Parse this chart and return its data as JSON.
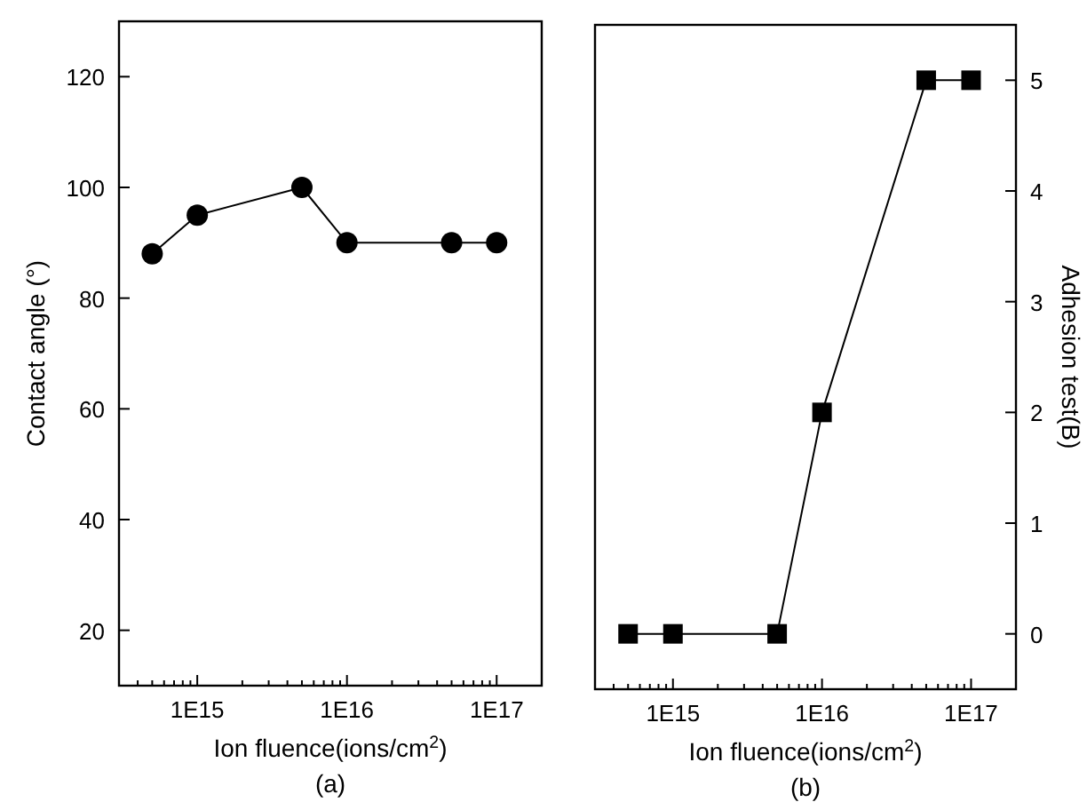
{
  "chart_data": [
    {
      "type": "line",
      "xlabel": "Ion fluence(ions/cm$^{2}$)",
      "ylabel": "Contact angle (°)",
      "annotations": [
        "(a)"
      ],
      "log": "x",
      "xlim": [
        300000000000000.0,
        2e+17
      ],
      "xticks": [
        {
          "value": 300000000000000.0,
          "label": null
        },
        {
          "value": 400000000000000.0,
          "label": null
        },
        {
          "value": 500000000000000.0,
          "label": null
        },
        {
          "value": 600000000000000.0,
          "label": null
        },
        {
          "value": 700000000000000.0,
          "label": null
        },
        {
          "value": 800000000000000.0,
          "label": null
        },
        {
          "value": 900000000000000.0,
          "label": null
        },
        {
          "value": 1000000000000000.0,
          "label": "1E15"
        },
        {
          "value": 2000000000000000.0,
          "label": null
        },
        {
          "value": 3000000000000000.0,
          "label": null
        },
        {
          "value": 4000000000000000.0,
          "label": null
        },
        {
          "value": 5000000000000000.0,
          "label": null
        },
        {
          "value": 6000000000000000.0,
          "label": null
        },
        {
          "value": 7000000000000000.0,
          "label": null
        },
        {
          "value": 8000000000000000.0,
          "label": null
        },
        {
          "value": 9000000000000000.0,
          "label": null
        },
        {
          "value": 1e+16,
          "label": "1E16"
        },
        {
          "value": 2e+16,
          "label": null
        },
        {
          "value": 3e+16,
          "label": null
        },
        {
          "value": 4e+16,
          "label": null
        },
        {
          "value": 5e+16,
          "label": null
        },
        {
          "value": 6e+16,
          "label": null
        },
        {
          "value": 7e+16,
          "label": null
        },
        {
          "value": 8e+16,
          "label": null
        },
        {
          "value": 9e+16,
          "label": null
        },
        {
          "value": 1e+17,
          "label": "1E17"
        },
        {
          "value": 2e+17,
          "label": null
        }
      ],
      "ylim": [
        10,
        130
      ],
      "yticks": [
        20,
        40,
        60,
        80,
        100,
        120
      ],
      "marker": "circle",
      "line_style": "solid",
      "x": [
        500000000000000.0,
        1000000000000000.0,
        5000000000000000.0,
        1e+16,
        5e+16,
        1e+17
      ],
      "series": [
        {
          "color": "#000000",
          "values": [
            88,
            95,
            100,
            90,
            90,
            90
          ]
        }
      ]
    },
    {
      "type": "line",
      "xlabel": "Ion fluence(ions/cm$^{2}$)",
      "y2label": "Adhesion test(B)",
      "annotations": [
        "(b)"
      ],
      "log": "x",
      "xlim": [
        300000000000000.0,
        2e+17
      ],
      "xticks": [
        {
          "value": 300000000000000.0,
          "label": null
        },
        {
          "value": 400000000000000.0,
          "label": null
        },
        {
          "value": 500000000000000.0,
          "label": null
        },
        {
          "value": 600000000000000.0,
          "label": null
        },
        {
          "value": 700000000000000.0,
          "label": null
        },
        {
          "value": 800000000000000.0,
          "label": null
        },
        {
          "value": 900000000000000.0,
          "label": null
        },
        {
          "value": 1000000000000000.0,
          "label": "1E15"
        },
        {
          "value": 2000000000000000.0,
          "label": null
        },
        {
          "value": 3000000000000000.0,
          "label": null
        },
        {
          "value": 4000000000000000.0,
          "label": null
        },
        {
          "value": 5000000000000000.0,
          "label": null
        },
        {
          "value": 6000000000000000.0,
          "label": null
        },
        {
          "value": 7000000000000000.0,
          "label": null
        },
        {
          "value": 8000000000000000.0,
          "label": null
        },
        {
          "value": 9000000000000000.0,
          "label": null
        },
        {
          "value": 1e+16,
          "label": "1E16"
        },
        {
          "value": 2e+16,
          "label": null
        },
        {
          "value": 3e+16,
          "label": null
        },
        {
          "value": 4e+16,
          "label": null
        },
        {
          "value": 5e+16,
          "label": null
        },
        {
          "value": 6e+16,
          "label": null
        },
        {
          "value": 7e+16,
          "label": null
        },
        {
          "value": 8e+16,
          "label": null
        },
        {
          "value": 9e+16,
          "label": null
        },
        {
          "value": 1e+17,
          "label": "1E17"
        },
        {
          "value": 2e+17,
          "label": null
        }
      ],
      "y2lim": [
        -0.5,
        5.5
      ],
      "y2ticks": [
        0,
        1,
        2,
        3,
        4,
        5
      ],
      "marker": "square",
      "line_style": "solid",
      "x": [
        500000000000000.0,
        1000000000000000.0,
        5000000000000000.0,
        1e+16,
        5e+16,
        1e+17
      ],
      "series": [
        {
          "color": "#000000",
          "axis": "y2",
          "values": [
            0,
            0,
            0,
            2,
            5,
            5
          ]
        }
      ]
    }
  ]
}
